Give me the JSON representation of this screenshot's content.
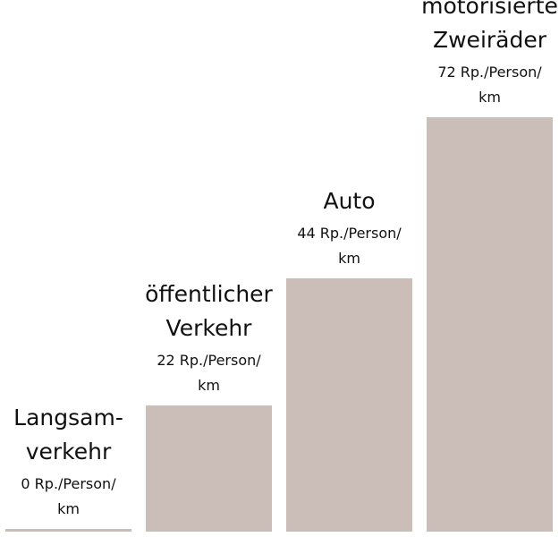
{
  "chart_data": {
    "type": "bar",
    "title": "",
    "xlabel": "",
    "ylabel": "",
    "ylim": [
      0,
      72
    ],
    "grid": false,
    "bar_color": "#cbbdb8",
    "categories": [
      {
        "name_lines": [
          "Langsam-",
          "verkehr"
        ],
        "value": 0,
        "value_lines": [
          "0 Rp./Person/",
          "km"
        ]
      },
      {
        "name_lines": [
          "öffentlicher",
          "Verkehr"
        ],
        "value": 22,
        "value_lines": [
          "22 Rp./Person/",
          "km"
        ]
      },
      {
        "name_lines": [
          "Auto"
        ],
        "value": 44,
        "value_lines": [
          "44 Rp./Person/",
          "km"
        ]
      },
      {
        "name_lines": [
          "motorisierte",
          "Zweiräder"
        ],
        "value": 72,
        "value_lines": [
          "72 Rp./Person/",
          "km"
        ]
      }
    ]
  }
}
